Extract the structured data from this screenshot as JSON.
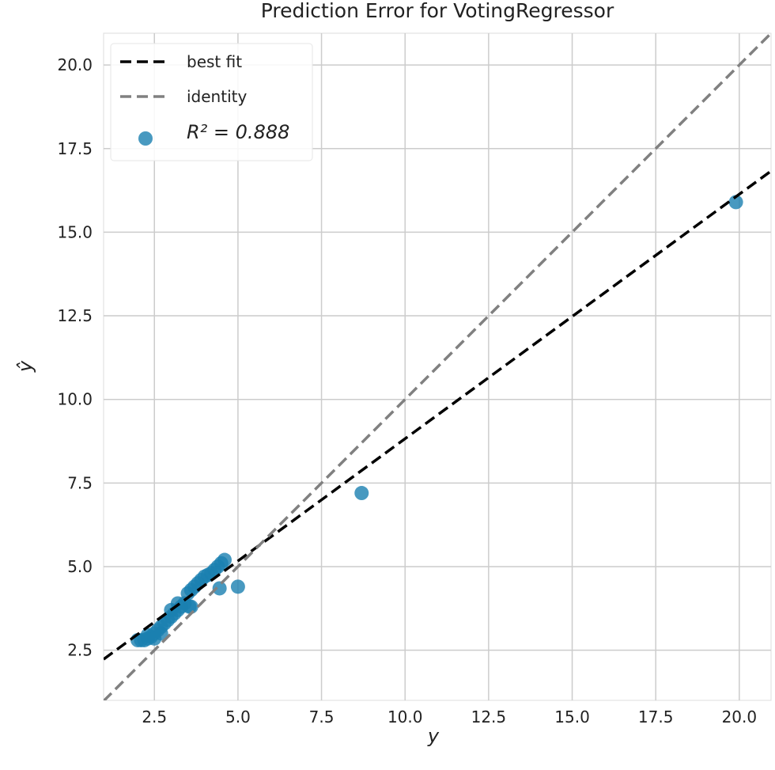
{
  "chart_data": {
    "type": "scatter",
    "title": "Prediction Error for VotingRegressor",
    "x_label": "y",
    "y_label": "ŷ",
    "xlim": [
      0.98,
      20.95
    ],
    "ylim": [
      1.0,
      20.95
    ],
    "xticks": [
      2.5,
      {
        "value": 5,
        "label": "5.0"
      },
      7.5,
      {
        "value": 10,
        "label": "10.0"
      },
      12.5,
      {
        "value": 15,
        "label": "15.0"
      },
      17.5,
      {
        "value": 20,
        "label": "20.0"
      }
    ],
    "yticks": [
      2.5,
      {
        "value": 5,
        "label": "5.0"
      },
      7.5,
      {
        "value": 10,
        "label": "10.0"
      },
      12.5,
      {
        "value": 15,
        "label": "15.0"
      },
      17.5,
      {
        "value": 20,
        "label": "20.0"
      }
    ],
    "grid": true,
    "legend": "upper left",
    "lines": [
      {
        "name": "best fit",
        "color": "#000000",
        "x": [
          0.98,
          20.95
        ],
        "y": [
          2.23,
          16.83
        ]
      },
      {
        "name": "identity",
        "color": "#808080",
        "x": [
          0.98,
          20.95
        ],
        "y": [
          0.98,
          20.95
        ]
      }
    ],
    "series": [
      {
        "name": "R² = 0.888",
        "color": "#1a80b0",
        "x": [
          19.9,
          8.7,
          5.0,
          4.45,
          4.6,
          4.5,
          4.4,
          4.3,
          4.2,
          4.1,
          4.0,
          3.9,
          3.8,
          3.7,
          3.6,
          3.5,
          3.55,
          3.4,
          3.3,
          3.2,
          3.1,
          3.0,
          2.9,
          2.8,
          2.7,
          2.6,
          2.5,
          2.4,
          2.3,
          2.2,
          2.1,
          2.0,
          2.3,
          2.5,
          2.7,
          3.0,
          3.6,
          3.2
        ],
        "values": [
          15.9,
          7.2,
          4.4,
          4.35,
          5.2,
          5.1,
          5.0,
          4.9,
          4.8,
          4.75,
          4.7,
          4.6,
          4.5,
          4.4,
          4.3,
          4.2,
          3.8,
          3.9,
          3.8,
          3.7,
          3.6,
          3.5,
          3.4,
          3.3,
          3.2,
          3.1,
          3.0,
          2.9,
          2.85,
          2.8,
          2.8,
          2.8,
          2.95,
          2.85,
          3.0,
          3.7,
          3.8,
          3.9
        ]
      }
    ]
  }
}
